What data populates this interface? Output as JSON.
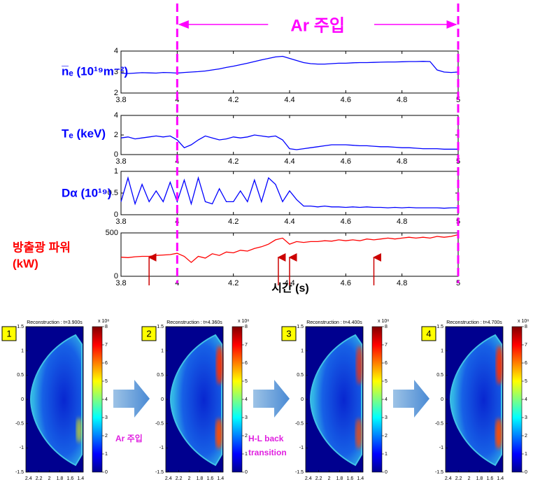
{
  "chart_data": [
    {
      "type": "line",
      "ylabel": "n̅ₑ (10¹⁹m⁻²)",
      "color": "#0000ff",
      "xlim": [
        3.8,
        5
      ],
      "xticks": [
        3.8,
        4,
        4.2,
        4.4,
        4.6,
        4.8,
        5
      ],
      "ylim": [
        2,
        4
      ],
      "yticks": [
        2,
        3,
        4
      ],
      "x": [
        3.8,
        3.825,
        3.85,
        3.875,
        3.9,
        3.925,
        3.95,
        3.975,
        4,
        4.025,
        4.05,
        4.075,
        4.1,
        4.125,
        4.15,
        4.175,
        4.2,
        4.225,
        4.25,
        4.275,
        4.3,
        4.325,
        4.35,
        4.375,
        4.4,
        4.425,
        4.45,
        4.475,
        4.5,
        4.525,
        4.55,
        4.575,
        4.6,
        4.625,
        4.65,
        4.675,
        4.7,
        4.725,
        4.75,
        4.775,
        4.8,
        4.825,
        4.85,
        4.875,
        4.9,
        4.925,
        4.95,
        4.975,
        5
      ],
      "values": [
        2.95,
        2.93,
        2.95,
        2.97,
        2.96,
        2.95,
        2.98,
        2.97,
        2.95,
        2.98,
        3.0,
        3.02,
        3.05,
        3.1,
        3.15,
        3.22,
        3.28,
        3.35,
        3.42,
        3.5,
        3.58,
        3.65,
        3.72,
        3.75,
        3.65,
        3.55,
        3.45,
        3.4,
        3.38,
        3.38,
        3.4,
        3.42,
        3.42,
        3.44,
        3.45,
        3.45,
        3.46,
        3.47,
        3.48,
        3.48,
        3.49,
        3.5,
        3.5,
        3.51,
        3.5,
        3.1,
        3.0,
        2.98,
        3.0
      ]
    },
    {
      "type": "line",
      "ylabel": "Tₑ (keV)",
      "color": "#0000ff",
      "xlim": [
        3.8,
        5
      ],
      "xticks": [
        3.8,
        4,
        4.2,
        4.4,
        4.6,
        4.8,
        5
      ],
      "ylim": [
        0,
        4
      ],
      "yticks": [
        0,
        2,
        4
      ],
      "x": [
        3.8,
        3.825,
        3.85,
        3.875,
        3.9,
        3.925,
        3.95,
        3.975,
        4,
        4.025,
        4.05,
        4.075,
        4.1,
        4.125,
        4.15,
        4.175,
        4.2,
        4.225,
        4.25,
        4.275,
        4.3,
        4.325,
        4.35,
        4.375,
        4.4,
        4.425,
        4.45,
        4.475,
        4.5,
        4.525,
        4.55,
        4.575,
        4.6,
        4.625,
        4.65,
        4.675,
        4.7,
        4.725,
        4.75,
        4.775,
        4.8,
        4.825,
        4.85,
        4.875,
        4.9,
        4.925,
        4.95,
        4.975,
        5
      ],
      "values": [
        1.7,
        1.8,
        1.6,
        1.7,
        1.8,
        1.9,
        1.8,
        1.9,
        1.5,
        0.7,
        1.0,
        1.5,
        1.9,
        1.7,
        1.5,
        1.6,
        1.8,
        1.7,
        1.8,
        2.0,
        1.9,
        1.8,
        1.9,
        1.5,
        0.6,
        0.5,
        0.6,
        0.7,
        0.8,
        0.9,
        1.0,
        1.0,
        1.0,
        0.95,
        0.9,
        0.9,
        0.85,
        0.8,
        0.8,
        0.75,
        0.7,
        0.7,
        0.65,
        0.6,
        0.6,
        0.6,
        0.55,
        0.55,
        0.55
      ]
    },
    {
      "type": "line",
      "ylabel": "Dα (10¹⁹)",
      "color": "#0000ff",
      "xlim": [
        3.8,
        5
      ],
      "xticks": [
        3.8,
        4,
        4.2,
        4.4,
        4.6,
        4.8,
        5
      ],
      "ylim": [
        0,
        1
      ],
      "yticks": [
        0,
        0.5,
        1
      ],
      "x": [
        3.8,
        3.825,
        3.85,
        3.875,
        3.9,
        3.925,
        3.95,
        3.975,
        4,
        4.025,
        4.05,
        4.075,
        4.1,
        4.125,
        4.15,
        4.175,
        4.2,
        4.225,
        4.25,
        4.275,
        4.3,
        4.325,
        4.35,
        4.375,
        4.4,
        4.425,
        4.45,
        4.475,
        4.5,
        4.525,
        4.55,
        4.575,
        4.6,
        4.625,
        4.65,
        4.675,
        4.7,
        4.725,
        4.75,
        4.775,
        4.8,
        4.825,
        4.85,
        4.875,
        4.9,
        4.925,
        4.95,
        4.975,
        5
      ],
      "values": [
        0.3,
        0.85,
        0.25,
        0.7,
        0.3,
        0.55,
        0.3,
        0.75,
        0.3,
        0.8,
        0.25,
        0.85,
        0.3,
        0.25,
        0.6,
        0.3,
        0.3,
        0.55,
        0.3,
        0.8,
        0.3,
        0.85,
        0.7,
        0.3,
        0.55,
        0.35,
        0.2,
        0.2,
        0.18,
        0.2,
        0.18,
        0.18,
        0.17,
        0.18,
        0.17,
        0.18,
        0.17,
        0.17,
        0.16,
        0.17,
        0.16,
        0.17,
        0.16,
        0.16,
        0.16,
        0.16,
        0.15,
        0.16,
        0.16
      ]
    },
    {
      "type": "line",
      "ylabel": [
        "방출광 파워",
        "(kW)"
      ],
      "xlabel": "시간 (s)",
      "color": "#ff0000",
      "xlim": [
        3.8,
        5
      ],
      "xticks": [
        3.8,
        4,
        4.2,
        4.4,
        4.6,
        4.8,
        5
      ],
      "ylim": [
        0,
        500
      ],
      "yticks": [
        0,
        500
      ],
      "markers_x": [
        3.9,
        4.36,
        4.4,
        4.7
      ],
      "x": [
        3.8,
        3.825,
        3.85,
        3.875,
        3.9,
        3.925,
        3.95,
        3.975,
        4,
        4.025,
        4.05,
        4.075,
        4.1,
        4.125,
        4.15,
        4.175,
        4.2,
        4.225,
        4.25,
        4.275,
        4.3,
        4.325,
        4.35,
        4.375,
        4.4,
        4.425,
        4.45,
        4.475,
        4.5,
        4.525,
        4.55,
        4.575,
        4.6,
        4.625,
        4.65,
        4.675,
        4.7,
        4.725,
        4.75,
        4.775,
        4.8,
        4.825,
        4.85,
        4.875,
        4.9,
        4.925,
        4.95,
        4.975,
        5
      ],
      "values": [
        220,
        215,
        225,
        230,
        230,
        240,
        245,
        250,
        265,
        230,
        160,
        230,
        210,
        260,
        240,
        280,
        270,
        300,
        290,
        320,
        340,
        370,
        420,
        440,
        370,
        400,
        390,
        400,
        400,
        410,
        405,
        420,
        410,
        420,
        410,
        430,
        420,
        430,
        440,
        430,
        440,
        450,
        440,
        450,
        440,
        460,
        450,
        460,
        480
      ]
    }
  ],
  "annotation": {
    "text": "Ar 주입",
    "start": 4,
    "end": 5
  },
  "reconstructions": [
    {
      "index": "1",
      "title": "Reconstruction : t=3.900s"
    },
    {
      "index": "2",
      "title": "Reconstruction : t=4.360s"
    },
    {
      "index": "3",
      "title": "Reconstruction : t=4.400s"
    },
    {
      "index": "4",
      "title": "Reconstruction : t=4.700s"
    }
  ],
  "recon_axes": {
    "xlim": [
      2.45,
      1.35
    ],
    "xticks": [
      2.4,
      2.2,
      2,
      1.8,
      1.6,
      1.4
    ],
    "ylim": [
      -1.5,
      1.5
    ],
    "yticks": [
      1.5,
      1,
      0.5,
      0,
      -0.5,
      -1,
      -1.5
    ],
    "colorbar_lim": [
      0,
      8
    ],
    "colorbar_ticks": [
      0,
      1,
      2,
      3,
      4,
      5,
      6,
      7,
      8
    ],
    "colorbar_scale": "x 10⁸"
  },
  "transitions": [
    [
      "Ar 주입"
    ],
    [
      "H-L back",
      "transition"
    ]
  ]
}
